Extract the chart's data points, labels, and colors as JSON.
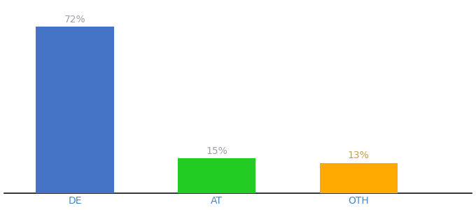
{
  "categories": [
    "DE",
    "AT",
    "OTH"
  ],
  "values": [
    72,
    15,
    13
  ],
  "bar_colors": [
    "#4472c4",
    "#22cc22",
    "#ffaa00"
  ],
  "label_colors": [
    "#a0a0b0",
    "#a0a0b0",
    "#c8a040"
  ],
  "value_labels": [
    "72%",
    "15%",
    "13%"
  ],
  "ylim": [
    0,
    82
  ],
  "background_color": "#ffffff",
  "tick_color": "#4488cc",
  "bar_width": 0.55,
  "label_fontsize": 10,
  "tick_fontsize": 10
}
